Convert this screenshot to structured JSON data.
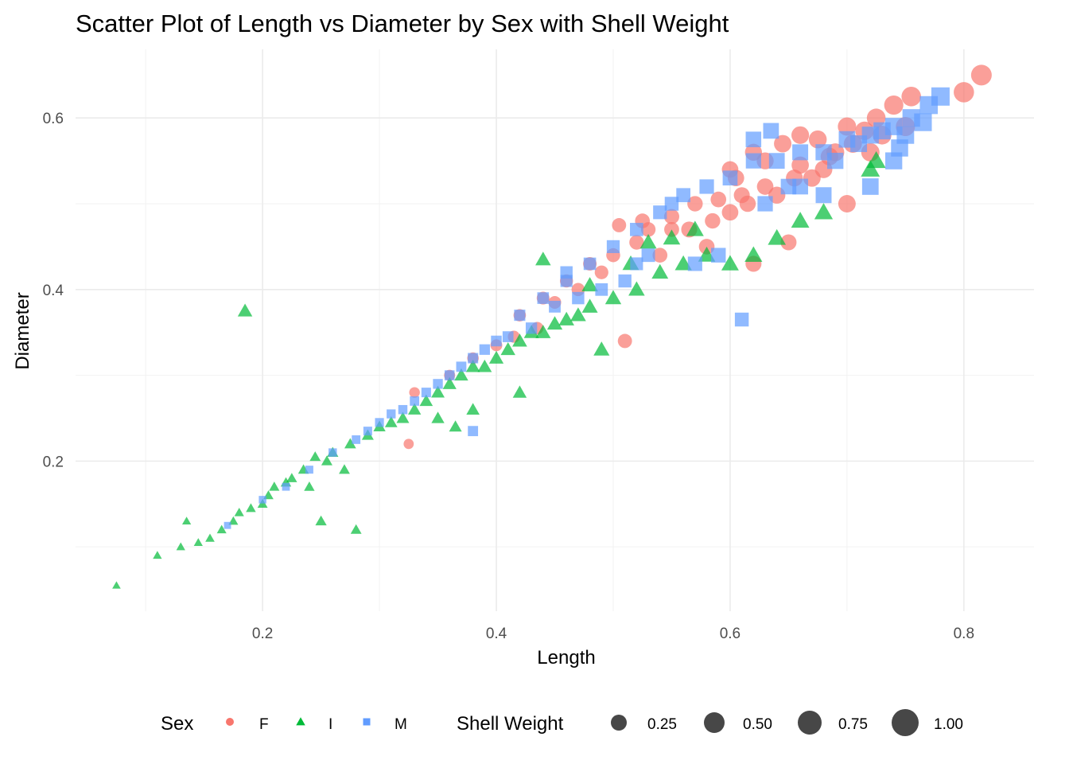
{
  "chart_data": {
    "type": "scatter",
    "title": "Scatter Plot of Length vs Diameter by Sex with Shell Weight",
    "xlabel": "Length",
    "ylabel": "Diameter",
    "xlim": [
      0.04,
      0.86
    ],
    "ylim": [
      0.025,
      0.68
    ],
    "x_ticks": [
      0.2,
      0.4,
      0.6,
      0.8
    ],
    "y_ticks": [
      0.2,
      0.4,
      0.6
    ],
    "x_tick_labels": [
      "0.2",
      "0.4",
      "0.6",
      "0.8"
    ],
    "y_tick_labels": [
      "0.2",
      "0.4",
      "0.6"
    ],
    "grid": true,
    "legend_position": "bottom",
    "color_legend": {
      "title": "Sex",
      "entries": [
        {
          "label": "F",
          "color": "#F8766D",
          "shape": "circle"
        },
        {
          "label": "I",
          "color": "#00BA38",
          "shape": "triangle"
        },
        {
          "label": "M",
          "color": "#619CFF",
          "shape": "square"
        }
      ]
    },
    "size_legend": {
      "title": "Shell Weight",
      "entries": [
        {
          "label": "0.25",
          "value": 0.25
        },
        {
          "label": "0.50",
          "value": 0.5
        },
        {
          "label": "0.75",
          "value": 0.75
        },
        {
          "label": "1.00",
          "value": 1.0
        }
      ]
    },
    "series": [
      {
        "name": "F",
        "color": "#F8766D",
        "shape": "circle",
        "points": [
          [
            0.815,
            0.65,
            1.0
          ],
          [
            0.8,
            0.63,
            0.95
          ],
          [
            0.755,
            0.625,
            0.85
          ],
          [
            0.74,
            0.615,
            0.8
          ],
          [
            0.725,
            0.6,
            0.75
          ],
          [
            0.7,
            0.59,
            0.7
          ],
          [
            0.675,
            0.575,
            0.65
          ],
          [
            0.66,
            0.58,
            0.62
          ],
          [
            0.645,
            0.57,
            0.6
          ],
          [
            0.62,
            0.56,
            0.55
          ],
          [
            0.72,
            0.56,
            0.7
          ],
          [
            0.68,
            0.54,
            0.6
          ],
          [
            0.655,
            0.53,
            0.55
          ],
          [
            0.63,
            0.52,
            0.5
          ],
          [
            0.605,
            0.53,
            0.5
          ],
          [
            0.61,
            0.51,
            0.45
          ],
          [
            0.59,
            0.505,
            0.42
          ],
          [
            0.57,
            0.5,
            0.4
          ],
          [
            0.55,
            0.485,
            0.38
          ],
          [
            0.525,
            0.48,
            0.35
          ],
          [
            0.53,
            0.47,
            0.33
          ],
          [
            0.505,
            0.475,
            0.3
          ],
          [
            0.5,
            0.44,
            0.28
          ],
          [
            0.48,
            0.43,
            0.25
          ],
          [
            0.46,
            0.41,
            0.22
          ],
          [
            0.44,
            0.39,
            0.2
          ],
          [
            0.42,
            0.37,
            0.18
          ],
          [
            0.4,
            0.335,
            0.15
          ],
          [
            0.38,
            0.32,
            0.13
          ],
          [
            0.36,
            0.3,
            0.11
          ],
          [
            0.33,
            0.28,
            0.09
          ],
          [
            0.325,
            0.22,
            0.07
          ],
          [
            0.51,
            0.34,
            0.3
          ],
          [
            0.62,
            0.43,
            0.45
          ],
          [
            0.65,
            0.455,
            0.45
          ],
          [
            0.7,
            0.5,
            0.6
          ],
          [
            0.58,
            0.45,
            0.42
          ],
          [
            0.54,
            0.44,
            0.35
          ],
          [
            0.565,
            0.47,
            0.45
          ],
          [
            0.6,
            0.49,
            0.5
          ],
          [
            0.64,
            0.51,
            0.55
          ],
          [
            0.67,
            0.53,
            0.6
          ],
          [
            0.69,
            0.56,
            0.65
          ],
          [
            0.73,
            0.58,
            0.75
          ],
          [
            0.75,
            0.59,
            0.8
          ],
          [
            0.6,
            0.54,
            0.5
          ],
          [
            0.63,
            0.55,
            0.55
          ],
          [
            0.55,
            0.47,
            0.36
          ],
          [
            0.52,
            0.455,
            0.33
          ],
          [
            0.49,
            0.42,
            0.26
          ],
          [
            0.47,
            0.4,
            0.23
          ],
          [
            0.45,
            0.385,
            0.2
          ],
          [
            0.435,
            0.355,
            0.18
          ],
          [
            0.415,
            0.345,
            0.16
          ],
          [
            0.585,
            0.48,
            0.4
          ],
          [
            0.615,
            0.5,
            0.48
          ],
          [
            0.66,
            0.545,
            0.58
          ],
          [
            0.705,
            0.57,
            0.68
          ],
          [
            0.685,
            0.555,
            0.62
          ],
          [
            0.715,
            0.585,
            0.72
          ]
        ]
      },
      {
        "name": "I",
        "color": "#00BA38",
        "shape": "triangle",
        "points": [
          [
            0.075,
            0.055,
            0.005
          ],
          [
            0.11,
            0.09,
            0.01
          ],
          [
            0.13,
            0.1,
            0.01
          ],
          [
            0.135,
            0.13,
            0.01
          ],
          [
            0.145,
            0.105,
            0.01
          ],
          [
            0.155,
            0.11,
            0.015
          ],
          [
            0.165,
            0.12,
            0.02
          ],
          [
            0.175,
            0.13,
            0.02
          ],
          [
            0.185,
            0.375,
            0.2
          ],
          [
            0.18,
            0.14,
            0.02
          ],
          [
            0.19,
            0.145,
            0.025
          ],
          [
            0.2,
            0.15,
            0.03
          ],
          [
            0.205,
            0.16,
            0.03
          ],
          [
            0.21,
            0.17,
            0.035
          ],
          [
            0.22,
            0.175,
            0.04
          ],
          [
            0.225,
            0.18,
            0.04
          ],
          [
            0.235,
            0.19,
            0.045
          ],
          [
            0.245,
            0.205,
            0.05
          ],
          [
            0.25,
            0.13,
            0.06
          ],
          [
            0.255,
            0.2,
            0.055
          ],
          [
            0.26,
            0.21,
            0.06
          ],
          [
            0.275,
            0.22,
            0.07
          ],
          [
            0.28,
            0.12,
            0.05
          ],
          [
            0.29,
            0.23,
            0.08
          ],
          [
            0.3,
            0.24,
            0.09
          ],
          [
            0.31,
            0.245,
            0.1
          ],
          [
            0.32,
            0.25,
            0.11
          ],
          [
            0.33,
            0.26,
            0.12
          ],
          [
            0.34,
            0.27,
            0.13
          ],
          [
            0.35,
            0.28,
            0.14
          ],
          [
            0.36,
            0.29,
            0.15
          ],
          [
            0.37,
            0.3,
            0.16
          ],
          [
            0.38,
            0.31,
            0.17
          ],
          [
            0.39,
            0.31,
            0.18
          ],
          [
            0.4,
            0.32,
            0.19
          ],
          [
            0.41,
            0.33,
            0.2
          ],
          [
            0.42,
            0.34,
            0.21
          ],
          [
            0.43,
            0.35,
            0.22
          ],
          [
            0.44,
            0.35,
            0.23
          ],
          [
            0.45,
            0.36,
            0.24
          ],
          [
            0.46,
            0.365,
            0.25
          ],
          [
            0.47,
            0.37,
            0.26
          ],
          [
            0.48,
            0.38,
            0.27
          ],
          [
            0.49,
            0.33,
            0.28
          ],
          [
            0.5,
            0.39,
            0.29
          ],
          [
            0.52,
            0.4,
            0.3
          ],
          [
            0.54,
            0.42,
            0.32
          ],
          [
            0.56,
            0.43,
            0.34
          ],
          [
            0.58,
            0.44,
            0.36
          ],
          [
            0.6,
            0.43,
            0.38
          ],
          [
            0.62,
            0.44,
            0.4
          ],
          [
            0.64,
            0.46,
            0.42
          ],
          [
            0.66,
            0.48,
            0.44
          ],
          [
            0.68,
            0.49,
            0.46
          ],
          [
            0.72,
            0.54,
            0.5
          ],
          [
            0.725,
            0.55,
            0.52
          ],
          [
            0.35,
            0.25,
            0.12
          ],
          [
            0.365,
            0.24,
            0.11
          ],
          [
            0.38,
            0.26,
            0.13
          ],
          [
            0.42,
            0.28,
            0.16
          ],
          [
            0.27,
            0.19,
            0.05
          ],
          [
            0.24,
            0.17,
            0.04
          ],
          [
            0.44,
            0.435,
            0.25
          ],
          [
            0.53,
            0.455,
            0.33
          ],
          [
            0.55,
            0.46,
            0.36
          ],
          [
            0.57,
            0.47,
            0.38
          ],
          [
            0.48,
            0.405,
            0.3
          ],
          [
            0.515,
            0.43,
            0.32
          ]
        ]
      },
      {
        "name": "M",
        "color": "#619CFF",
        "shape": "square",
        "points": [
          [
            0.78,
            0.625,
            0.95
          ],
          [
            0.77,
            0.615,
            0.9
          ],
          [
            0.755,
            0.6,
            0.85
          ],
          [
            0.74,
            0.59,
            0.8
          ],
          [
            0.72,
            0.58,
            0.75
          ],
          [
            0.7,
            0.575,
            0.7
          ],
          [
            0.68,
            0.56,
            0.65
          ],
          [
            0.66,
            0.56,
            0.62
          ],
          [
            0.64,
            0.55,
            0.6
          ],
          [
            0.62,
            0.55,
            0.55
          ],
          [
            0.6,
            0.53,
            0.5
          ],
          [
            0.58,
            0.52,
            0.46
          ],
          [
            0.56,
            0.51,
            0.42
          ],
          [
            0.54,
            0.49,
            0.38
          ],
          [
            0.52,
            0.47,
            0.34
          ],
          [
            0.5,
            0.45,
            0.31
          ],
          [
            0.48,
            0.43,
            0.27
          ],
          [
            0.46,
            0.41,
            0.24
          ],
          [
            0.44,
            0.39,
            0.21
          ],
          [
            0.42,
            0.37,
            0.18
          ],
          [
            0.4,
            0.34,
            0.15
          ],
          [
            0.38,
            0.32,
            0.13
          ],
          [
            0.36,
            0.3,
            0.11
          ],
          [
            0.34,
            0.28,
            0.09
          ],
          [
            0.32,
            0.26,
            0.07
          ],
          [
            0.3,
            0.245,
            0.06
          ],
          [
            0.28,
            0.225,
            0.05
          ],
          [
            0.26,
            0.21,
            0.04
          ],
          [
            0.24,
            0.19,
            0.03
          ],
          [
            0.22,
            0.17,
            0.025
          ],
          [
            0.2,
            0.155,
            0.02
          ],
          [
            0.17,
            0.125,
            0.01
          ],
          [
            0.61,
            0.365,
            0.4
          ],
          [
            0.57,
            0.43,
            0.45
          ],
          [
            0.59,
            0.44,
            0.48
          ],
          [
            0.63,
            0.5,
            0.55
          ],
          [
            0.65,
            0.52,
            0.58
          ],
          [
            0.69,
            0.55,
            0.66
          ],
          [
            0.71,
            0.57,
            0.72
          ],
          [
            0.73,
            0.585,
            0.78
          ],
          [
            0.75,
            0.58,
            0.82
          ],
          [
            0.765,
            0.595,
            0.86
          ],
          [
            0.62,
            0.575,
            0.58
          ],
          [
            0.635,
            0.585,
            0.6
          ],
          [
            0.55,
            0.5,
            0.4
          ],
          [
            0.53,
            0.44,
            0.36
          ],
          [
            0.51,
            0.41,
            0.32
          ],
          [
            0.49,
            0.4,
            0.28
          ],
          [
            0.47,
            0.39,
            0.26
          ],
          [
            0.45,
            0.38,
            0.22
          ],
          [
            0.43,
            0.355,
            0.19
          ],
          [
            0.41,
            0.345,
            0.16
          ],
          [
            0.39,
            0.33,
            0.14
          ],
          [
            0.37,
            0.31,
            0.12
          ],
          [
            0.35,
            0.29,
            0.1
          ],
          [
            0.33,
            0.27,
            0.08
          ],
          [
            0.31,
            0.255,
            0.065
          ],
          [
            0.29,
            0.235,
            0.055
          ],
          [
            0.38,
            0.235,
            0.12
          ],
          [
            0.52,
            0.43,
            0.3
          ],
          [
            0.46,
            0.42,
            0.26
          ],
          [
            0.72,
            0.52,
            0.7
          ],
          [
            0.68,
            0.51,
            0.62
          ],
          [
            0.66,
            0.52,
            0.6
          ],
          [
            0.74,
            0.55,
            0.76
          ],
          [
            0.745,
            0.565,
            0.78
          ]
        ]
      }
    ]
  }
}
